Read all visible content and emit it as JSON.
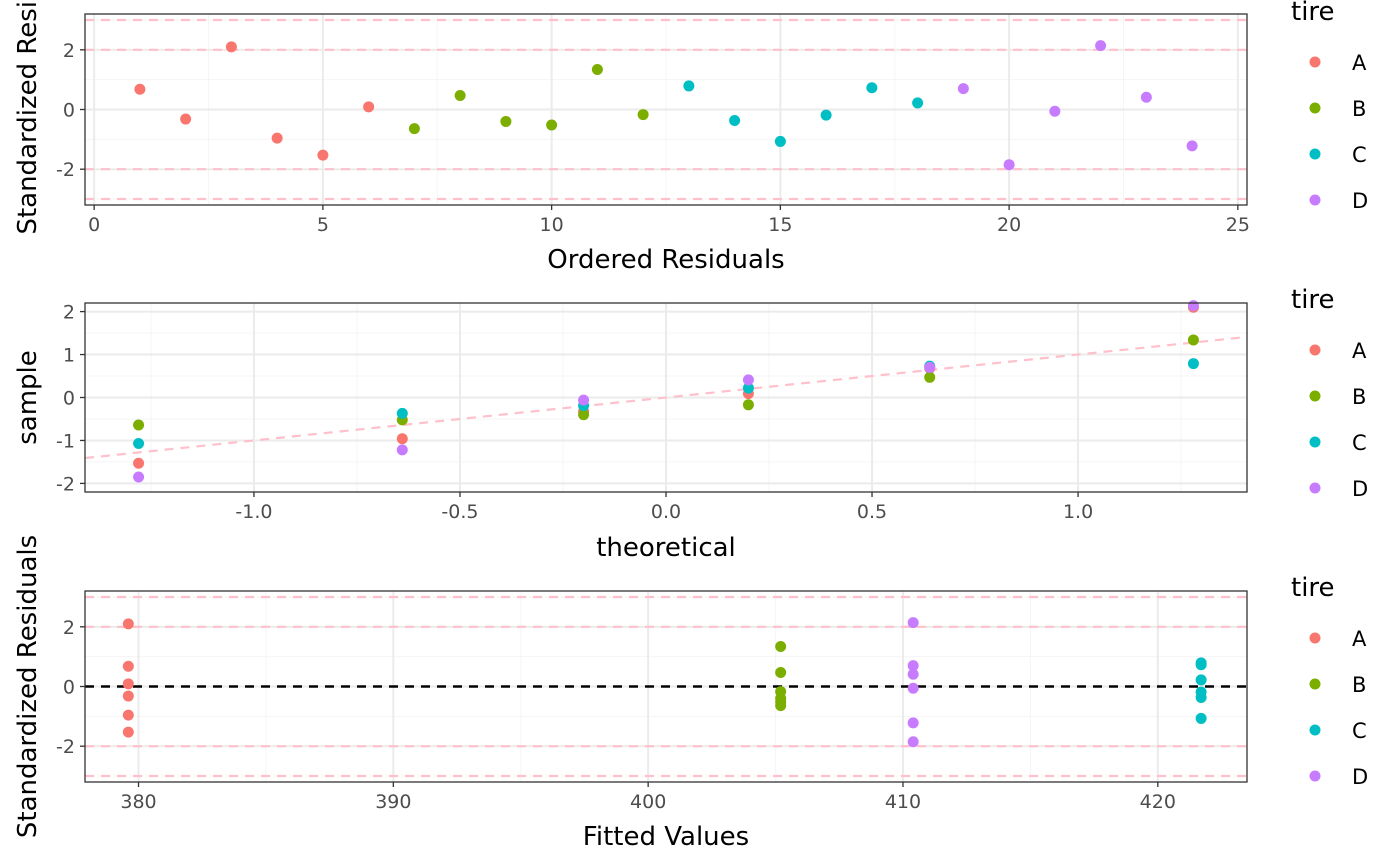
{
  "colors": {
    "A": "#F8766D",
    "B": "#7CAE00",
    "C": "#00BFC4",
    "D": "#C77CFF",
    "ref_line": "#FFC0CB",
    "zero_line": "#000000",
    "panel_border": "#333333",
    "grid_major": "#EBEBEB",
    "grid_minor": "#F5F5F5"
  },
  "legend": {
    "title": "tire",
    "entries": [
      "A",
      "B",
      "C",
      "D"
    ],
    "placement": "right"
  },
  "chart_data": [
    {
      "type": "scatter",
      "xlabel": "Ordered Residuals",
      "ylabel": "Standardized Resid",
      "xlim": [
        -0.2,
        25.2
      ],
      "ylim": [
        -3.2,
        3.2
      ],
      "x_ticks": [
        "0",
        "5",
        "10",
        "15",
        "20",
        "25"
      ],
      "x_tick_values": [
        0,
        5,
        10,
        15,
        20,
        25
      ],
      "y_ticks": [
        "-2",
        "0",
        "2"
      ],
      "y_tick_values": [
        -2,
        0,
        2
      ],
      "hlines": [
        {
          "y": 3,
          "style": "dashed",
          "color": "ref"
        },
        {
          "y": 2,
          "style": "dashed",
          "color": "ref"
        },
        {
          "y": -2,
          "style": "dashed",
          "color": "ref"
        },
        {
          "y": -3,
          "style": "dashed",
          "color": "ref"
        }
      ],
      "series": [
        {
          "name": "A",
          "points": [
            [
              1,
              0.68
            ],
            [
              2,
              -0.32
            ],
            [
              3,
              2.1
            ],
            [
              4,
              -0.96
            ],
            [
              5,
              -1.53
            ],
            [
              6,
              0.09
            ]
          ]
        },
        {
          "name": "B",
          "points": [
            [
              7,
              -0.64
            ],
            [
              8,
              0.47
            ],
            [
              9,
              -0.4
            ],
            [
              10,
              -0.52
            ],
            [
              11,
              1.34
            ],
            [
              12,
              -0.17
            ]
          ]
        },
        {
          "name": "C",
          "points": [
            [
              13,
              0.79
            ],
            [
              14,
              -0.37
            ],
            [
              15,
              -1.07
            ],
            [
              16,
              -0.19
            ],
            [
              17,
              0.73
            ],
            [
              18,
              0.22
            ]
          ]
        },
        {
          "name": "D",
          "points": [
            [
              19,
              0.7
            ],
            [
              20,
              -1.85
            ],
            [
              21,
              -0.06
            ],
            [
              22,
              2.14
            ],
            [
              23,
              0.41
            ],
            [
              24,
              -1.22
            ]
          ]
        }
      ]
    },
    {
      "type": "scatter",
      "xlabel": "theoretical",
      "ylabel": "sample",
      "xlim": [
        -1.41,
        1.41
      ],
      "ylim": [
        -2.2,
        2.2
      ],
      "x_ticks": [
        "-1.0",
        "-0.5",
        "0.0",
        "0.5",
        "1.0"
      ],
      "x_tick_values": [
        -1,
        -0.5,
        0,
        0.5,
        1
      ],
      "y_ticks": [
        "-2",
        "-1",
        "0",
        "1",
        "2"
      ],
      "y_tick_values": [
        -2,
        -1,
        0,
        1,
        2
      ],
      "abline": {
        "slope": 1,
        "intercept": 0,
        "style": "dashed",
        "color": "ref"
      },
      "series": [
        {
          "name": "A",
          "points": [
            [
              -1.28,
              -1.53
            ],
            [
              -0.64,
              -0.96
            ],
            [
              -0.2,
              -0.32
            ],
            [
              0.2,
              0.09
            ],
            [
              0.64,
              0.68
            ],
            [
              1.28,
              2.1
            ]
          ]
        },
        {
          "name": "B",
          "points": [
            [
              -1.28,
              -0.64
            ],
            [
              -0.64,
              -0.52
            ],
            [
              -0.2,
              -0.4
            ],
            [
              0.2,
              -0.17
            ],
            [
              0.64,
              0.47
            ],
            [
              1.28,
              1.34
            ]
          ]
        },
        {
          "name": "C",
          "points": [
            [
              -1.28,
              -1.07
            ],
            [
              -0.64,
              -0.37
            ],
            [
              -0.2,
              -0.19
            ],
            [
              0.2,
              0.22
            ],
            [
              0.64,
              0.73
            ],
            [
              1.28,
              0.79
            ]
          ]
        },
        {
          "name": "D",
          "points": [
            [
              -1.28,
              -1.85
            ],
            [
              -0.64,
              -1.22
            ],
            [
              -0.2,
              -0.06
            ],
            [
              0.2,
              0.41
            ],
            [
              0.64,
              0.7
            ],
            [
              1.28,
              2.14
            ]
          ]
        }
      ]
    },
    {
      "type": "scatter",
      "xlabel": "Fitted Values",
      "ylabel": "Standardized Residuals",
      "xlim": [
        377.9,
        423.5
      ],
      "ylim": [
        -3.2,
        3.2
      ],
      "x_ticks": [
        "380",
        "390",
        "400",
        "410",
        "420"
      ],
      "x_tick_values": [
        380,
        390,
        400,
        410,
        420
      ],
      "y_ticks": [
        "-2",
        "0",
        "2"
      ],
      "y_tick_values": [
        -2,
        0,
        2
      ],
      "hlines": [
        {
          "y": 3,
          "style": "dashed",
          "color": "ref"
        },
        {
          "y": 2,
          "style": "dashed",
          "color": "ref"
        },
        {
          "y": -2,
          "style": "dashed",
          "color": "ref"
        },
        {
          "y": -3,
          "style": "dashed",
          "color": "ref"
        },
        {
          "y": 0,
          "style": "dashed",
          "color": "zero"
        }
      ],
      "series": [
        {
          "name": "A",
          "points": [
            [
              379.6,
              2.1
            ],
            [
              379.6,
              0.68
            ],
            [
              379.6,
              0.09
            ],
            [
              379.6,
              -0.32
            ],
            [
              379.6,
              -0.96
            ],
            [
              379.6,
              -1.53
            ]
          ]
        },
        {
          "name": "B",
          "points": [
            [
              405.2,
              1.34
            ],
            [
              405.2,
              0.47
            ],
            [
              405.2,
              -0.17
            ],
            [
              405.2,
              -0.4
            ],
            [
              405.2,
              -0.52
            ],
            [
              405.2,
              -0.64
            ]
          ]
        },
        {
          "name": "C",
          "points": [
            [
              421.7,
              0.79
            ],
            [
              421.7,
              0.73
            ],
            [
              421.7,
              0.22
            ],
            [
              421.7,
              -0.19
            ],
            [
              421.7,
              -0.37
            ],
            [
              421.7,
              -1.07
            ]
          ]
        },
        {
          "name": "D",
          "points": [
            [
              410.4,
              2.14
            ],
            [
              410.4,
              0.7
            ],
            [
              410.4,
              0.41
            ],
            [
              410.4,
              -0.06
            ],
            [
              410.4,
              -1.22
            ],
            [
              410.4,
              -1.85
            ]
          ]
        }
      ]
    }
  ]
}
